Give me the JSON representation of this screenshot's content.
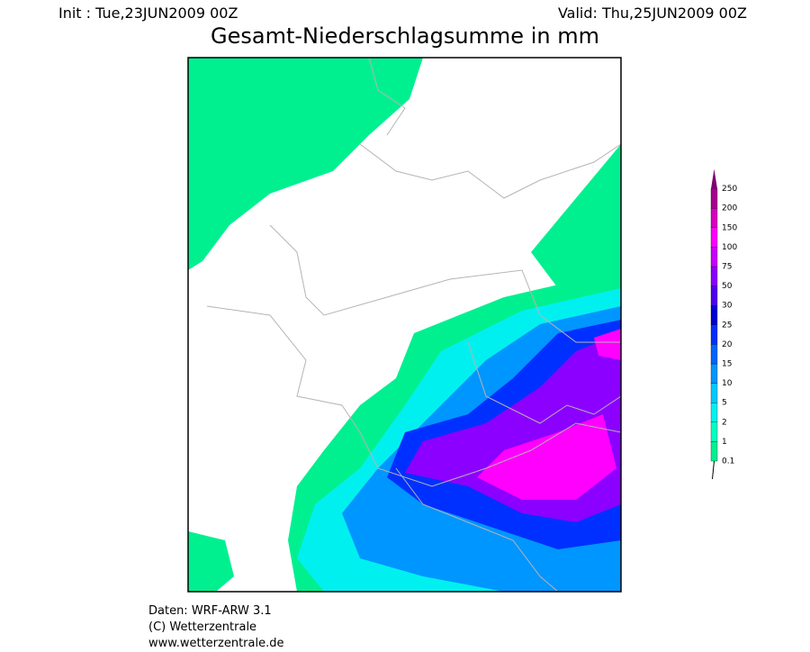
{
  "header": {
    "init": "Init : Tue,23JUN2009 00Z",
    "valid": "Valid: Thu,25JUN2009 00Z",
    "title": "Gesamt-Niederschlagsumme in mm"
  },
  "legend": {
    "levels": [
      0.1,
      1,
      2,
      5,
      10,
      15,
      20,
      25,
      30,
      50,
      75,
      100,
      150,
      200,
      250
    ],
    "colors": [
      "#00f090",
      "#00ffc0",
      "#00f0f0",
      "#00c8ff",
      "#0096ff",
      "#0064ff",
      "#0030ff",
      "#0000d8",
      "#5000f0",
      "#8c00ff",
      "#c800ff",
      "#ff00ff",
      "#d800c0",
      "#a80090"
    ],
    "top_color": "#800070"
  },
  "footer": [
    "Daten: WRF-ARW 3.1",
    "(C) Wetterzentrale",
    "www.wetterzentrale.de"
  ]
}
